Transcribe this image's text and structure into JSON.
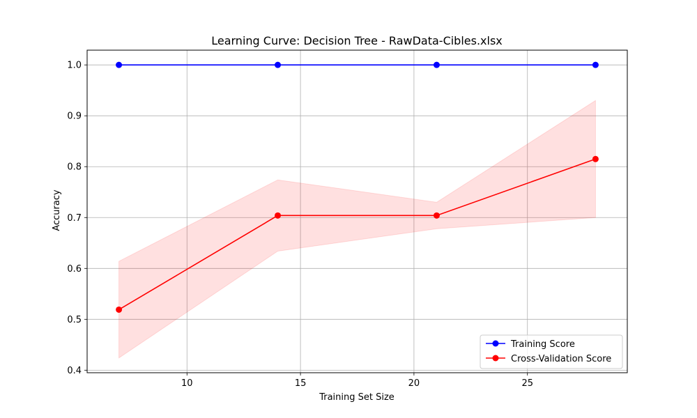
{
  "chart_data": {
    "type": "line",
    "title": "Learning Curve: Decision Tree - RawData-Cibles.xlsx",
    "xlabel": "Training Set Size",
    "ylabel": "Accuracy",
    "x": [
      7,
      14,
      21,
      28
    ],
    "xlim": [
      5.6,
      29.4
    ],
    "ylim": [
      0.395,
      1.029
    ],
    "xticks": [
      10,
      15,
      20,
      25
    ],
    "yticks": [
      0.4,
      0.5,
      0.6,
      0.7,
      0.8,
      0.9,
      1.0
    ],
    "xtick_labels": [
      "10",
      "15",
      "20",
      "25"
    ],
    "ytick_labels": [
      "0.4",
      "0.5",
      "0.6",
      "0.7",
      "0.8",
      "0.9",
      "1.0"
    ],
    "grid": true,
    "legend_position": "lower-right",
    "series": [
      {
        "name": "Training Score",
        "color": "#0000ff",
        "values": [
          1.0,
          1.0,
          1.0,
          1.0
        ],
        "band_lower": [
          1.0,
          1.0,
          1.0,
          1.0
        ],
        "band_upper": [
          1.0,
          1.0,
          1.0,
          1.0
        ]
      },
      {
        "name": "Cross-Validation Score",
        "color": "#ff0000",
        "band_color": "#ff0000",
        "values": [
          0.519,
          0.704,
          0.704,
          0.815
        ],
        "band_lower": [
          0.424,
          0.634,
          0.678,
          0.7
        ],
        "band_upper": [
          0.614,
          0.774,
          0.73,
          0.93
        ]
      }
    ]
  }
}
